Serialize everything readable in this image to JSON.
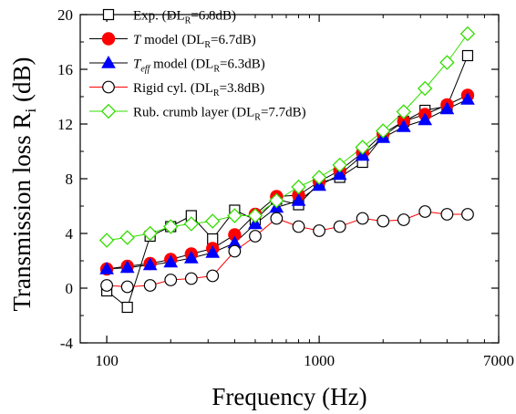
{
  "chart_data": {
    "type": "line",
    "xlabel": "Frequency (Hz)",
    "ylabel_main": "Transmission loss R",
    "ylabel_sub": "i",
    "ylabel_unit": " (dB)",
    "xscale": "log",
    "xlim": [
      75,
      7000
    ],
    "ylim": [
      -4,
      20
    ],
    "x_ticks": [
      {
        "value": 100,
        "label": "100"
      },
      {
        "value": 1000,
        "label": "1000"
      },
      {
        "value": 7000,
        "label": "7000"
      }
    ],
    "x_minor_ticks": [
      200,
      300,
      400,
      500,
      600,
      700,
      800,
      900,
      2000,
      3000,
      4000,
      5000,
      6000
    ],
    "y_ticks": [
      {
        "value": -4,
        "label": "-4"
      },
      {
        "value": 0,
        "label": "0"
      },
      {
        "value": 4,
        "label": "4"
      },
      {
        "value": 8,
        "label": "8"
      },
      {
        "value": 12,
        "label": "12"
      },
      {
        "value": 16,
        "label": "16"
      },
      {
        "value": 20,
        "label": "20"
      }
    ],
    "y_minor_ticks": [
      -2,
      2,
      6,
      10,
      14,
      18
    ],
    "grid": false,
    "legend_position": "top-left",
    "x": [
      100,
      125,
      160,
      200,
      250,
      315,
      400,
      500,
      630,
      800,
      1000,
      1250,
      1600,
      2000,
      2500,
      3150,
      4000,
      5000
    ],
    "series": [
      {
        "name": "Exp. (DL_R=6.8dB)",
        "legend_main": "Exp. (DL",
        "legend_sub": "R",
        "legend_tail": "=6.8dB)",
        "marker": "square-open",
        "color": "#000000",
        "line_color": "#000000",
        "values": [
          -0.2,
          -1.4,
          3.8,
          4.5,
          5.3,
          3.6,
          5.7,
          5.0,
          6.5,
          6.1,
          7.7,
          8.1,
          9.2,
          11.1,
          12.2,
          13.0,
          13.3,
          17.0
        ]
      },
      {
        "name": "T model (DL_R=6.7dB)",
        "legend_italic": "T",
        "legend_main": " model (DL",
        "legend_sub": "R",
        "legend_tail": "=6.7dB)",
        "marker": "circle-filled",
        "color": "#ff0000",
        "line_color": "#000000",
        "values": [
          1.4,
          1.6,
          1.8,
          2.1,
          2.5,
          2.9,
          3.9,
          5.4,
          6.7,
          6.8,
          7.8,
          8.6,
          9.9,
          11.3,
          12.2,
          12.7,
          13.4,
          14.1
        ]
      },
      {
        "name": "T_eff model (DL_R=6.3dB)",
        "legend_italic": "T",
        "legend_italic_sub": "eff",
        "legend_main": " model (DL",
        "legend_sub": "R",
        "legend_tail": "=6.3dB)",
        "marker": "triangle-filled",
        "color": "#0000ff",
        "line_color": "#000000",
        "values": [
          1.4,
          1.5,
          1.7,
          1.9,
          2.2,
          2.6,
          3.3,
          4.7,
          5.9,
          6.4,
          7.5,
          8.3,
          9.7,
          11.0,
          11.8,
          12.3,
          13.1,
          13.8
        ]
      },
      {
        "name": "Rigid cyl. (DL_R=3.8dB)",
        "legend_main": "Rigid cyl. (DL",
        "legend_sub": "R",
        "legend_tail": "=3.8dB)",
        "marker": "circle-open",
        "color": "#000000",
        "line_color": "#ff0000",
        "values": [
          0.2,
          0.1,
          0.2,
          0.6,
          0.7,
          0.9,
          2.7,
          3.8,
          5.1,
          4.5,
          4.2,
          4.5,
          5.1,
          4.9,
          5.0,
          5.6,
          5.4,
          5.4
        ]
      },
      {
        "name": "Rub. crumb layer (DL_R=7.7dB)",
        "legend_main": "Rub. crumb layer (DL",
        "legend_sub": "R",
        "legend_tail": "=7.7dB)",
        "marker": "diamond-open",
        "color": "#33dd00",
        "line_color": "#33dd00",
        "values": [
          3.5,
          3.7,
          4.0,
          4.5,
          4.7,
          4.9,
          5.3,
          5.3,
          6.4,
          7.4,
          8.1,
          9.0,
          10.3,
          11.5,
          12.9,
          14.6,
          16.5,
          18.6
        ]
      }
    ]
  }
}
